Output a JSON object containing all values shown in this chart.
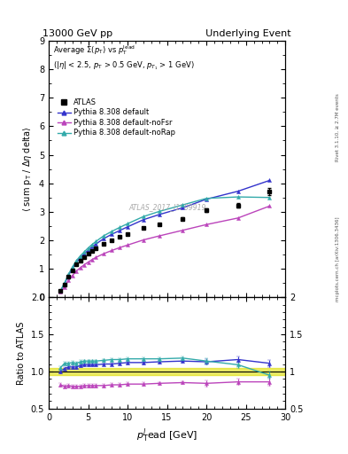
{
  "title_left": "13000 GeV pp",
  "title_right": "Underlying Event",
  "right_label": "mcplots.cern.ch [arXiv:1306.3436]",
  "rivet_label": "Rivet 3.1.10, ≥ 2.7M events",
  "watermark": "ATLAS_2017_I1509919",
  "ylabel_main": "⟨ sum p_T / Δη delta⟩",
  "ylabel_ratio": "Ratio to ATLAS",
  "annotation": "Average Σ(p_T) vs p_T^{lead} (|η| < 2.5, p_T > 0.5 GeV, p_{T_1} > 1 GeV)",
  "ylim_main": [
    0,
    9
  ],
  "ylim_ratio": [
    0.5,
    2
  ],
  "yticks_main": [
    0,
    1,
    2,
    3,
    4,
    5,
    6,
    7,
    8,
    9
  ],
  "yticks_ratio": [
    0.5,
    1.0,
    1.5,
    2.0
  ],
  "xlim": [
    0,
    30
  ],
  "atlas_x": [
    1.5,
    2.0,
    2.5,
    3.0,
    3.5,
    4.0,
    4.5,
    5.0,
    5.5,
    6.0,
    7.0,
    8.0,
    9.0,
    10.0,
    12.0,
    14.0,
    17.0,
    20.0,
    24.0,
    28.0
  ],
  "atlas_y": [
    0.22,
    0.45,
    0.72,
    0.95,
    1.15,
    1.28,
    1.4,
    1.52,
    1.63,
    1.72,
    1.88,
    2.0,
    2.11,
    2.21,
    2.43,
    2.56,
    2.75,
    3.05,
    3.22,
    3.7
  ],
  "atlas_yerr": [
    0.02,
    0.02,
    0.02,
    0.02,
    0.02,
    0.02,
    0.02,
    0.02,
    0.02,
    0.02,
    0.03,
    0.03,
    0.03,
    0.03,
    0.04,
    0.04,
    0.05,
    0.06,
    0.07,
    0.12
  ],
  "py_default_x": [
    1.5,
    2.0,
    2.5,
    3.0,
    3.5,
    4.0,
    4.5,
    5.0,
    5.5,
    6.0,
    7.0,
    8.0,
    9.0,
    10.0,
    12.0,
    14.0,
    17.0,
    20.0,
    24.0,
    28.0
  ],
  "py_default_y": [
    0.22,
    0.47,
    0.76,
    1.01,
    1.22,
    1.38,
    1.52,
    1.65,
    1.77,
    1.87,
    2.06,
    2.21,
    2.34,
    2.47,
    2.72,
    2.9,
    3.14,
    3.44,
    3.72,
    4.1
  ],
  "py_noFsr_x": [
    1.5,
    2.0,
    2.5,
    3.0,
    3.5,
    4.0,
    4.5,
    5.0,
    5.5,
    6.0,
    7.0,
    8.0,
    9.0,
    10.0,
    12.0,
    14.0,
    17.0,
    20.0,
    24.0,
    28.0
  ],
  "py_noFsr_y": [
    0.18,
    0.36,
    0.58,
    0.76,
    0.92,
    1.03,
    1.14,
    1.23,
    1.32,
    1.4,
    1.53,
    1.64,
    1.74,
    1.83,
    2.01,
    2.15,
    2.35,
    2.55,
    2.78,
    3.2
  ],
  "py_noRap_x": [
    1.5,
    2.0,
    2.5,
    3.0,
    3.5,
    4.0,
    4.5,
    5.0,
    5.5,
    6.0,
    7.0,
    8.0,
    9.0,
    10.0,
    12.0,
    14.0,
    17.0,
    20.0,
    24.0,
    28.0
  ],
  "py_noRap_y": [
    0.23,
    0.5,
    0.8,
    1.06,
    1.28,
    1.45,
    1.59,
    1.73,
    1.85,
    1.96,
    2.16,
    2.31,
    2.45,
    2.58,
    2.83,
    3.01,
    3.24,
    3.47,
    3.52,
    3.5
  ],
  "color_atlas": "#000000",
  "color_default": "#3333cc",
  "color_noFsr": "#bb44bb",
  "color_noRap": "#33aaaa",
  "color_band": "#dddd00",
  "ratio_default": [
    1.0,
    1.04,
    1.06,
    1.06,
    1.06,
    1.08,
    1.09,
    1.09,
    1.09,
    1.09,
    1.1,
    1.1,
    1.11,
    1.12,
    1.12,
    1.13,
    1.14,
    1.13,
    1.16,
    1.11
  ],
  "ratio_noFsr": [
    0.82,
    0.8,
    0.81,
    0.8,
    0.8,
    0.8,
    0.81,
    0.81,
    0.81,
    0.81,
    0.81,
    0.82,
    0.82,
    0.83,
    0.83,
    0.84,
    0.85,
    0.84,
    0.86,
    0.86
  ],
  "ratio_noRap": [
    1.05,
    1.11,
    1.11,
    1.12,
    1.11,
    1.13,
    1.14,
    1.14,
    1.14,
    1.14,
    1.15,
    1.16,
    1.16,
    1.17,
    1.17,
    1.17,
    1.18,
    1.14,
    1.09,
    0.95
  ],
  "ratio_yerr_default": [
    0.02,
    0.02,
    0.02,
    0.02,
    0.02,
    0.02,
    0.02,
    0.02,
    0.02,
    0.02,
    0.02,
    0.02,
    0.02,
    0.02,
    0.02,
    0.02,
    0.02,
    0.04,
    0.04,
    0.05
  ],
  "ratio_yerr_noFsr": [
    0.02,
    0.02,
    0.02,
    0.02,
    0.02,
    0.02,
    0.02,
    0.02,
    0.02,
    0.02,
    0.02,
    0.02,
    0.02,
    0.02,
    0.02,
    0.02,
    0.02,
    0.04,
    0.04,
    0.05
  ],
  "ratio_yerr_noRap": [
    0.02,
    0.02,
    0.02,
    0.02,
    0.02,
    0.02,
    0.02,
    0.02,
    0.02,
    0.02,
    0.02,
    0.02,
    0.02,
    0.02,
    0.02,
    0.02,
    0.02,
    0.04,
    0.04,
    0.05
  ]
}
